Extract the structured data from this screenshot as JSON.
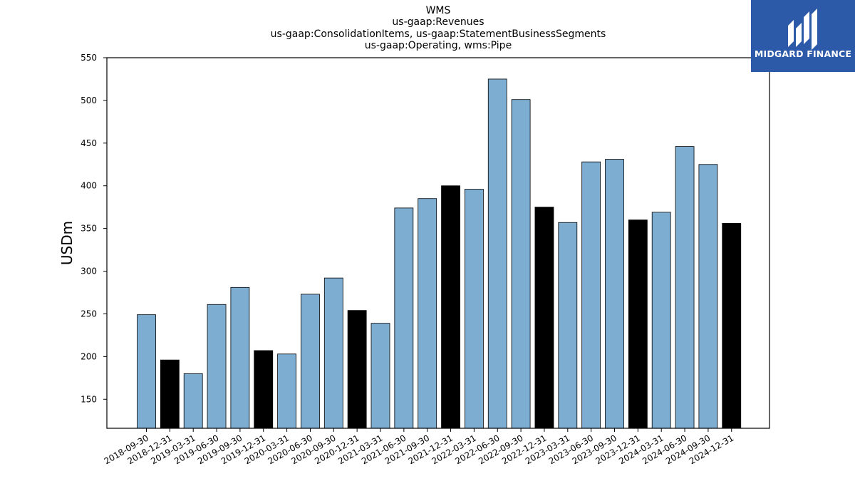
{
  "chart_data": {
    "type": "bar",
    "title_lines": [
      "WMS",
      "us-gaap:Revenues",
      "us-gaap:ConsolidationItems, us-gaap:StatementBusinessSegments",
      "us-gaap:Operating, wms:Pipe"
    ],
    "xlabel": "",
    "ylabel": "USDm",
    "ylim": [
      116,
      550
    ],
    "yticks": [
      150,
      200,
      250,
      300,
      350,
      400,
      450,
      500,
      550
    ],
    "categories": [
      "2018-09-30",
      "2018-12-31",
      "2019-03-31",
      "2019-06-30",
      "2019-09-30",
      "2019-12-31",
      "2020-03-31",
      "2020-06-30",
      "2020-09-30",
      "2020-12-31",
      "2021-03-31",
      "2021-06-30",
      "2021-09-30",
      "2021-12-31",
      "2022-03-31",
      "2022-06-30",
      "2022-09-30",
      "2022-12-31",
      "2023-03-31",
      "2023-06-30",
      "2023-09-30",
      "2023-12-31",
      "2024-03-31",
      "2024-06-30",
      "2024-09-30",
      "2024-12-31"
    ],
    "values": [
      249,
      196,
      180,
      261,
      281,
      207,
      203,
      273,
      292,
      254,
      239,
      374,
      385,
      400,
      396,
      525,
      501,
      375,
      357,
      428,
      431,
      360,
      369,
      446,
      425,
      356
    ],
    "highlight": [
      false,
      true,
      false,
      false,
      false,
      true,
      false,
      false,
      false,
      true,
      false,
      false,
      false,
      true,
      false,
      false,
      false,
      true,
      false,
      false,
      false,
      true,
      false,
      false,
      false,
      true
    ],
    "colors": {
      "normal": "#7eadd2",
      "highlight": "#000000",
      "edge": "#000000"
    },
    "grid": false,
    "legend": "none"
  },
  "logo": {
    "text": "MIDGARD FINANCE",
    "background": "#2c5aa8"
  }
}
